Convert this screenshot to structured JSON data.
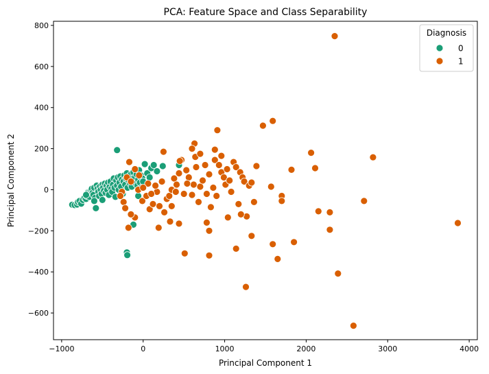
{
  "chart_data": {
    "type": "scatter",
    "title": "PCA: Feature Space and Class Separability",
    "xlabel": "Principal Component 1",
    "ylabel": "Principal Component 2",
    "xlim": [
      -1100,
      4100
    ],
    "ylim": [
      -730,
      820
    ],
    "xticks": [
      -1000,
      0,
      1000,
      2000,
      3000,
      4000
    ],
    "yticks": [
      -600,
      -400,
      -200,
      0,
      200,
      400,
      600,
      800
    ],
    "xtick_labels": [
      "−1000",
      "0",
      "1000",
      "2000",
      "3000",
      "4000"
    ],
    "ytick_labels": [
      "−600",
      "−400",
      "−200",
      "0",
      "200",
      "400",
      "600",
      "800"
    ],
    "grid": false,
    "legend": {
      "title": "Diagnosis",
      "placement": "top-right"
    },
    "series": [
      {
        "name": "0",
        "color": "#1b9e77",
        "points": [
          [
            -870,
            -73
          ],
          [
            -840,
            -75
          ],
          [
            -810,
            -72
          ],
          [
            -800,
            -60
          ],
          [
            -780,
            -55
          ],
          [
            -760,
            -68
          ],
          [
            -740,
            -50
          ],
          [
            -720,
            -40
          ],
          [
            -700,
            -45
          ],
          [
            -690,
            -30
          ],
          [
            -680,
            -20
          ],
          [
            -670,
            -10
          ],
          [
            -660,
            -35
          ],
          [
            -650,
            -5
          ],
          [
            -640,
            0
          ],
          [
            -630,
            5
          ],
          [
            -620,
            -15
          ],
          [
            -610,
            -25
          ],
          [
            -600,
            10
          ],
          [
            -590,
            -40
          ],
          [
            -580,
            -90
          ],
          [
            -570,
            20
          ],
          [
            -560,
            5
          ],
          [
            -550,
            -10
          ],
          [
            -540,
            -30
          ],
          [
            -530,
            15
          ],
          [
            -520,
            0
          ],
          [
            -510,
            -20
          ],
          [
            -500,
            25
          ],
          [
            -490,
            10
          ],
          [
            -480,
            -5
          ],
          [
            -470,
            30
          ],
          [
            -460,
            -15
          ],
          [
            -450,
            20
          ],
          [
            -440,
            0
          ],
          [
            -430,
            35
          ],
          [
            -420,
            -25
          ],
          [
            -410,
            15
          ],
          [
            -400,
            40
          ],
          [
            -390,
            5
          ],
          [
            -380,
            -10
          ],
          [
            -370,
            25
          ],
          [
            -360,
            55
          ],
          [
            -350,
            10
          ],
          [
            -340,
            -35
          ],
          [
            -330,
            45
          ],
          [
            -320,
            20
          ],
          [
            -310,
            60
          ],
          [
            -300,
            0
          ],
          [
            -290,
            35
          ],
          [
            -280,
            65
          ],
          [
            -270,
            15
          ],
          [
            -260,
            50
          ],
          [
            -250,
            -20
          ],
          [
            -240,
            40
          ],
          [
            -230,
            70
          ],
          [
            -220,
            25
          ],
          [
            -210,
            55
          ],
          [
            -200,
            80
          ],
          [
            -190,
            10
          ],
          [
            -180,
            45
          ],
          [
            -170,
            65
          ],
          [
            -160,
            30
          ],
          [
            -150,
            75
          ],
          [
            -140,
            15
          ],
          [
            -130,
            55
          ],
          [
            -120,
            85
          ],
          [
            -110,
            40
          ],
          [
            -100,
            60
          ],
          [
            -90,
            30
          ],
          [
            -80,
            75
          ],
          [
            -70,
            20
          ],
          [
            -60,
            50
          ],
          [
            -50,
            95
          ],
          [
            -40,
            35
          ],
          [
            -30,
            70
          ],
          [
            -20,
            10
          ],
          [
            -10,
            55
          ],
          [
            0,
            40
          ],
          [
            20,
            125
          ],
          [
            50,
            80
          ],
          [
            80,
            60
          ],
          [
            100,
            105
          ],
          [
            130,
            120
          ],
          [
            170,
            90
          ],
          [
            240,
            115
          ],
          [
            440,
            120
          ],
          [
            -320,
            193
          ],
          [
            -200,
            -305
          ],
          [
            -195,
            -318
          ],
          [
            -120,
            -170
          ],
          [
            -60,
            -30
          ],
          [
            -500,
            -50
          ],
          [
            -600,
            -55
          ],
          [
            -700,
            -25
          ]
        ]
      },
      {
        "name": "1",
        "color": "#d95f02",
        "points": [
          [
            2350,
            748
          ],
          [
            1590,
            335
          ],
          [
            1470,
            312
          ],
          [
            910,
            290
          ],
          [
            630,
            225
          ],
          [
            2060,
            180
          ],
          [
            2820,
            158
          ],
          [
            2110,
            105
          ],
          [
            1820,
            97
          ],
          [
            1570,
            15
          ],
          [
            1700,
            -30
          ],
          [
            1700,
            -55
          ],
          [
            2710,
            -55
          ],
          [
            2150,
            -105
          ],
          [
            2290,
            -110
          ],
          [
            2290,
            -195
          ],
          [
            3860,
            -162
          ],
          [
            2390,
            -408
          ],
          [
            2580,
            -662
          ],
          [
            1850,
            -255
          ],
          [
            1590,
            -265
          ],
          [
            1650,
            -337
          ],
          [
            1330,
            -225
          ],
          [
            1140,
            -287
          ],
          [
            1260,
            -473
          ],
          [
            510,
            -310
          ],
          [
            810,
            -320
          ],
          [
            440,
            -165
          ],
          [
            330,
            -155
          ],
          [
            190,
            -185
          ],
          [
            -100,
            -135
          ],
          [
            -150,
            -120
          ],
          [
            -180,
            -185
          ],
          [
            -240,
            -60
          ],
          [
            -260,
            -10
          ],
          [
            -220,
            -90
          ],
          [
            -280,
            -30
          ],
          [
            -200,
            60
          ],
          [
            -150,
            40
          ],
          [
            -100,
            100
          ],
          [
            -170,
            135
          ],
          [
            -60,
            0
          ],
          [
            -10,
            -55
          ],
          [
            40,
            -30
          ],
          [
            80,
            -95
          ],
          [
            120,
            -70
          ],
          [
            170,
            -10
          ],
          [
            200,
            -80
          ],
          [
            260,
            -110
          ],
          [
            290,
            -45
          ],
          [
            320,
            -30
          ],
          [
            350,
            0
          ],
          [
            380,
            55
          ],
          [
            410,
            25
          ],
          [
            440,
            80
          ],
          [
            470,
            145
          ],
          [
            500,
            -20
          ],
          [
            530,
            95
          ],
          [
            560,
            60
          ],
          [
            600,
            -25
          ],
          [
            620,
            25
          ],
          [
            640,
            160
          ],
          [
            680,
            -60
          ],
          [
            700,
            15
          ],
          [
            730,
            45
          ],
          [
            760,
            120
          ],
          [
            780,
            -20
          ],
          [
            810,
            75
          ],
          [
            830,
            -85
          ],
          [
            860,
            10
          ],
          [
            880,
            145
          ],
          [
            900,
            -30
          ],
          [
            930,
            120
          ],
          [
            960,
            85
          ],
          [
            990,
            60
          ],
          [
            1010,
            25
          ],
          [
            1030,
            100
          ],
          [
            1060,
            45
          ],
          [
            1080,
            -10
          ],
          [
            1110,
            135
          ],
          [
            1140,
            110
          ],
          [
            1170,
            -70
          ],
          [
            1190,
            85
          ],
          [
            1220,
            60
          ],
          [
            1240,
            40
          ],
          [
            1270,
            -130
          ],
          [
            1300,
            20
          ],
          [
            1330,
            35
          ],
          [
            1360,
            -60
          ],
          [
            1390,
            115
          ],
          [
            600,
            200
          ],
          [
            700,
            175
          ],
          [
            880,
            195
          ],
          [
            960,
            165
          ],
          [
            1040,
            -135
          ],
          [
            1200,
            -120
          ],
          [
            780,
            -160
          ],
          [
            810,
            -200
          ],
          [
            400,
            -10
          ],
          [
            250,
            185
          ],
          [
            150,
            20
          ],
          [
            100,
            -20
          ],
          [
            60,
            30
          ],
          [
            0,
            10
          ],
          [
            -50,
            70
          ],
          [
            450,
            140
          ],
          [
            540,
            30
          ],
          [
            350,
            -80
          ],
          [
            230,
            40
          ],
          [
            650,
            110
          ]
        ]
      }
    ]
  }
}
